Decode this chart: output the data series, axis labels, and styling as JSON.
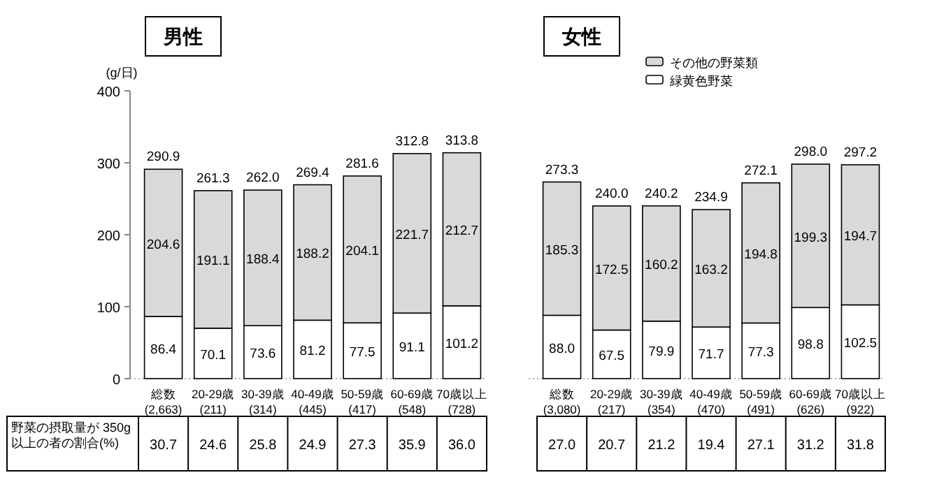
{
  "chart_data": [
    {
      "type": "bar",
      "title": "男性",
      "ylabel": "(g/日)",
      "stacked": true,
      "legend": false,
      "categories": [
        "総数\n(2,663)",
        "20-29歳\n(211)",
        "30-39歳\n(314)",
        "40-49歳\n(445)",
        "50-59歳\n(417)",
        "60-69歳\n(548)",
        "70歳以上\n(728)"
      ],
      "series": [
        {
          "color": "#ffffff",
          "values": [
            86.4,
            70.1,
            73.6,
            81.2,
            77.5,
            91.1,
            101.2
          ],
          "value_labels": [
            "86.4",
            "70.1",
            "73.6",
            "81.2",
            "77.5",
            "91.1",
            "101.2"
          ]
        },
        {
          "color": "#d9d9d9",
          "values": [
            204.6,
            191.1,
            188.4,
            188.2,
            204.1,
            221.7,
            212.7
          ],
          "value_labels": [
            "204.6",
            "191.1",
            "188.4",
            "188.2",
            "204.1",
            "221.7",
            "212.7"
          ]
        }
      ],
      "totals": [
        "290.9",
        "261.3",
        "262.0",
        "269.4",
        "281.6",
        "312.8",
        "313.8"
      ],
      "ylim": [
        0,
        400
      ],
      "yticks": [
        0,
        100,
        200,
        300,
        400
      ],
      "grid": false,
      "annotations": [
        "野菜の摂取量が 350g 以上の者の割合(%)",
        "30.7",
        "24.6",
        "25.8",
        "24.9",
        "27.3",
        "35.9",
        "36.0"
      ]
    },
    {
      "type": "bar",
      "title": "女性",
      "stacked": true,
      "legend": "top right",
      "tick_labels": "x",
      "categories": [
        "総数\n(3,080)",
        "20-29歳\n(217)",
        "30-39歳\n(354)",
        "40-49歳\n(470)",
        "50-59歳\n(491)",
        "60-69歳\n(626)",
        "70歳以上\n(922)"
      ],
      "series": [
        {
          "name": "緑黄色野菜",
          "color": "#ffffff",
          "values": [
            88.0,
            67.5,
            79.9,
            71.7,
            77.3,
            98.8,
            102.5
          ],
          "value_labels": [
            "88.0",
            "67.5",
            "79.9",
            "71.7",
            "77.3",
            "98.8",
            "102.5"
          ]
        },
        {
          "name": "その他の野菜類",
          "color": "#d9d9d9",
          "values": [
            185.3,
            172.5,
            160.2,
            163.2,
            194.8,
            199.3,
            194.7
          ],
          "value_labels": [
            "185.3",
            "172.5",
            "160.2",
            "163.2",
            "194.8",
            "199.3",
            "194.7"
          ]
        }
      ],
      "totals": [
        "273.3",
        "240.0",
        "240.2",
        "234.9",
        "272.1",
        "298.0",
        "297.2"
      ],
      "ylim": [
        0,
        400
      ],
      "grid": false,
      "annotations": [
        "27.0",
        "20.7",
        "21.2",
        "19.4",
        "27.1",
        "31.2",
        "31.8"
      ]
    }
  ]
}
